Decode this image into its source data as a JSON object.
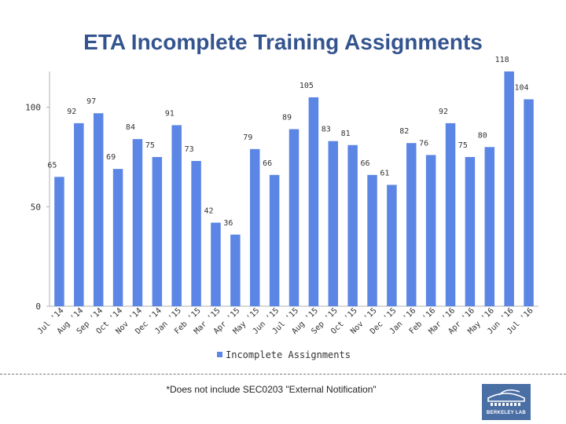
{
  "title": "ETA Incomplete Training Assignments",
  "footnote": "*Does not include SEC0203 \"External Notification\"",
  "logo": {
    "text": "BERKELEY LAB"
  },
  "colors": {
    "bar": "#5b86e5",
    "title": "#34548f",
    "axis": "#b0b0b0"
  },
  "chart_data": {
    "type": "bar",
    "title": "ETA Incomplete Training Assignments",
    "categories": [
      "Jul '14",
      "Aug '14",
      "Sep '14",
      "Oct '14",
      "Nov '14",
      "Dec '14",
      "Jan '15",
      "Feb '15",
      "Mar '15",
      "Apr '15",
      "May '15",
      "Jun '15",
      "Jul '15",
      "Aug '15",
      "Sep '15",
      "Oct '15",
      "Nov '15",
      "Dec '15",
      "Jan '16",
      "Feb '16",
      "Mar '16",
      "Apr '16",
      "May '16",
      "Jun '16",
      "Jul '16"
    ],
    "series": [
      {
        "name": "Incomplete Assignments",
        "values": [
          65,
          92,
          97,
          69,
          84,
          75,
          91,
          73,
          42,
          36,
          79,
          66,
          89,
          105,
          83,
          81,
          66,
          61,
          82,
          76,
          92,
          75,
          80,
          118,
          104
        ]
      }
    ],
    "yticks": [
      0,
      50,
      100
    ],
    "ylim": [
      0,
      118
    ],
    "legend": "bottom",
    "xlabel": "",
    "ylabel": ""
  }
}
